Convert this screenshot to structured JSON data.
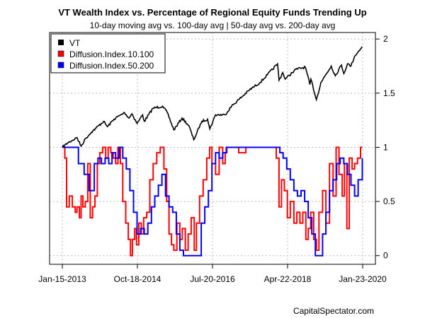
{
  "chart_data": {
    "type": "line",
    "title": "VT Wealth Index vs. Percentage of Regional Equity Funds Trending Up",
    "subtitle": "10-day moving avg vs. 100-day avg | 50-day avg vs. 200-day avg",
    "credit": "CapitalSpectator.com",
    "x_ticks": [
      "Jan-15-2013",
      "Oct-18-2014",
      "Jul-20-2016",
      "Apr-22-2018",
      "Jan-23-2020"
    ],
    "y_ticks": [
      "0",
      "0.5",
      "1",
      "1.5",
      "2"
    ],
    "ylim": [
      -0.08,
      2.06
    ],
    "grid": true,
    "legend_position": "top-left",
    "series": [
      {
        "name": "VT",
        "color": "#000000",
        "x": [
          "2013-01-15",
          "2013-03-01",
          "2013-05-20",
          "2013-06-24",
          "2013-08-01",
          "2013-09-20",
          "2013-11-01",
          "2014-01-02",
          "2014-02-04",
          "2014-04-01",
          "2014-06-30",
          "2014-08-07",
          "2014-09-01",
          "2014-10-16",
          "2014-12-01",
          "2014-12-16",
          "2015-02-27",
          "2015-05-21",
          "2015-06-30",
          "2015-08-25",
          "2015-11-03",
          "2015-12-31",
          "2016-02-11",
          "2016-04-20",
          "2016-06-08",
          "2016-06-27",
          "2016-08-15",
          "2016-11-04",
          "2016-12-30",
          "2017-03-01",
          "2017-06-01",
          "2017-09-01",
          "2017-11-01",
          "2018-01-26",
          "2018-02-08",
          "2018-03-12",
          "2018-04-02",
          "2018-06-01",
          "2018-07-01",
          "2018-09-21",
          "2018-10-29",
          "2018-11-07",
          "2018-12-24",
          "2019-02-01",
          "2019-04-30",
          "2019-06-03",
          "2019-07-26",
          "2019-08-15",
          "2019-09-15",
          "2019-10-15",
          "2019-11-15",
          "2019-12-15",
          "2020-01-17"
        ],
        "values": [
          1.0,
          1.04,
          1.09,
          1.01,
          1.08,
          1.14,
          1.18,
          1.24,
          1.19,
          1.26,
          1.32,
          1.27,
          1.31,
          1.22,
          1.3,
          1.24,
          1.36,
          1.38,
          1.32,
          1.16,
          1.27,
          1.2,
          1.07,
          1.24,
          1.26,
          1.17,
          1.3,
          1.3,
          1.38,
          1.44,
          1.53,
          1.6,
          1.67,
          1.77,
          1.62,
          1.69,
          1.63,
          1.69,
          1.72,
          1.74,
          1.58,
          1.63,
          1.44,
          1.6,
          1.75,
          1.66,
          1.76,
          1.68,
          1.77,
          1.75,
          1.84,
          1.88,
          1.93
        ]
      },
      {
        "name": "Diffusion.Index.10.100",
        "color": "#ff0000",
        "x": [
          "2013-01-15",
          "2013-02-05",
          "2013-02-20",
          "2013-03-15",
          "2013-04-10",
          "2013-05-05",
          "2013-05-20",
          "2013-06-10",
          "2013-06-24",
          "2013-07-10",
          "2013-07-30",
          "2013-08-20",
          "2013-09-10",
          "2013-09-30",
          "2013-10-20",
          "2013-11-10",
          "2013-12-01",
          "2013-12-25",
          "2014-01-20",
          "2014-02-10",
          "2014-03-05",
          "2014-03-25",
          "2014-04-15",
          "2014-05-05",
          "2014-05-25",
          "2014-06-15",
          "2014-07-10",
          "2014-08-01",
          "2014-08-20",
          "2014-09-05",
          "2014-09-25",
          "2014-10-10",
          "2014-10-30",
          "2014-11-20",
          "2014-12-10",
          "2015-01-05",
          "2015-02-01",
          "2015-03-01",
          "2015-04-01",
          "2015-05-01",
          "2015-06-01",
          "2015-06-25",
          "2015-07-15",
          "2015-08-05",
          "2015-08-25",
          "2015-09-20",
          "2015-10-15",
          "2015-11-05",
          "2015-12-01",
          "2015-12-25",
          "2016-01-20",
          "2016-02-15",
          "2016-03-05",
          "2016-04-01",
          "2016-05-01",
          "2016-06-01",
          "2016-06-25",
          "2016-07-15",
          "2016-08-15",
          "2016-09-15",
          "2016-10-15",
          "2016-11-05",
          "2016-11-20",
          "2017-01-01",
          "2017-03-01",
          "2017-05-01",
          "2017-07-01",
          "2017-09-01",
          "2017-11-01",
          "2018-01-15",
          "2018-02-08",
          "2018-03-01",
          "2018-03-25",
          "2018-04-20",
          "2018-05-15",
          "2018-06-15",
          "2018-07-10",
          "2018-08-05",
          "2018-08-30",
          "2018-09-25",
          "2018-10-15",
          "2018-11-05",
          "2018-12-01",
          "2018-12-24",
          "2019-01-15",
          "2019-02-15",
          "2019-03-15",
          "2019-04-15",
          "2019-05-15",
          "2019-06-10",
          "2019-07-05",
          "2019-08-01",
          "2019-08-20",
          "2019-09-10",
          "2019-10-01",
          "2019-10-25",
          "2019-11-15",
          "2019-12-10",
          "2020-01-05",
          "2020-01-20"
        ],
        "values": [
          1.0,
          0.9,
          0.45,
          0.55,
          0.45,
          0.4,
          0.45,
          0.35,
          0.55,
          0.45,
          0.5,
          0.85,
          0.35,
          0.45,
          0.55,
          0.85,
          0.95,
          1.0,
          0.9,
          1.0,
          0.95,
          0.9,
          0.85,
          1.0,
          0.85,
          0.5,
          0.3,
          0.15,
          0.0,
          0.15,
          0.25,
          0.1,
          0.3,
          0.2,
          0.35,
          0.4,
          0.7,
          0.85,
          0.95,
          1.0,
          0.8,
          0.5,
          0.2,
          0.1,
          0.05,
          0.3,
          0.15,
          0.25,
          0.05,
          0.2,
          0.35,
          0.05,
          0.3,
          0.55,
          0.7,
          0.9,
          1.0,
          0.85,
          0.75,
          1.0,
          0.85,
          0.95,
          1.0,
          1.0,
          0.95,
          1.0,
          1.0,
          1.0,
          1.0,
          0.9,
          0.45,
          0.7,
          0.6,
          0.35,
          0.5,
          0.3,
          0.4,
          0.3,
          0.4,
          0.15,
          0.25,
          0.4,
          0.15,
          0.05,
          0.4,
          0.6,
          0.3,
          0.85,
          0.55,
          1.0,
          0.75,
          0.55,
          0.85,
          0.25,
          0.9,
          0.8,
          0.85,
          0.9,
          1.0,
          1.0
        ]
      },
      {
        "name": "Diffusion.Index.50.200",
        "color": "#0000ff",
        "x": [
          "2013-01-15",
          "2013-04-01",
          "2013-06-01",
          "2013-07-20",
          "2013-09-01",
          "2013-10-15",
          "2013-11-15",
          "2013-12-15",
          "2014-01-15",
          "2014-02-15",
          "2014-03-15",
          "2014-04-15",
          "2014-05-15",
          "2014-06-15",
          "2014-07-15",
          "2014-08-15",
          "2014-09-15",
          "2014-10-15",
          "2014-11-15",
          "2014-12-15",
          "2015-01-15",
          "2015-02-15",
          "2015-03-15",
          "2015-04-15",
          "2015-05-15",
          "2015-06-15",
          "2015-07-15",
          "2015-08-15",
          "2015-09-15",
          "2015-10-15",
          "2015-11-15",
          "2015-12-15",
          "2016-01-15",
          "2016-02-15",
          "2016-03-15",
          "2016-04-15",
          "2016-05-15",
          "2016-06-15",
          "2016-07-15",
          "2016-08-15",
          "2016-09-15",
          "2016-10-15",
          "2016-11-15",
          "2016-12-15",
          "2017-03-01",
          "2017-06-01",
          "2017-09-01",
          "2017-11-01",
          "2018-01-15",
          "2018-02-15",
          "2018-03-15",
          "2018-04-15",
          "2018-05-15",
          "2018-06-15",
          "2018-07-15",
          "2018-08-15",
          "2018-09-15",
          "2018-10-15",
          "2018-11-15",
          "2018-12-15",
          "2019-01-15",
          "2019-02-15",
          "2019-03-15",
          "2019-04-15",
          "2019-05-15",
          "2019-06-15",
          "2019-07-15",
          "2019-08-15",
          "2019-09-15",
          "2019-10-15",
          "2019-11-15",
          "2019-12-15",
          "2020-01-20"
        ],
        "values": [
          1.0,
          1.0,
          0.85,
          0.75,
          0.6,
          0.85,
          0.9,
          0.85,
          0.9,
          0.85,
          0.95,
          0.9,
          1.0,
          0.9,
          0.8,
          0.6,
          0.4,
          0.2,
          0.25,
          0.2,
          0.3,
          0.45,
          0.55,
          0.65,
          0.75,
          0.55,
          0.45,
          0.4,
          0.2,
          0.05,
          0.0,
          0.0,
          0.0,
          0.0,
          0.0,
          0.3,
          0.45,
          0.6,
          0.85,
          0.95,
          0.9,
          0.95,
          1.0,
          1.0,
          1.0,
          1.0,
          1.0,
          1.0,
          1.0,
          0.95,
          0.9,
          0.8,
          0.7,
          0.6,
          0.55,
          0.6,
          0.5,
          0.35,
          0.2,
          0.0,
          0.0,
          0.2,
          0.4,
          0.6,
          0.7,
          0.85,
          0.9,
          0.85,
          0.75,
          0.65,
          0.55,
          0.7,
          0.9
        ]
      }
    ]
  }
}
